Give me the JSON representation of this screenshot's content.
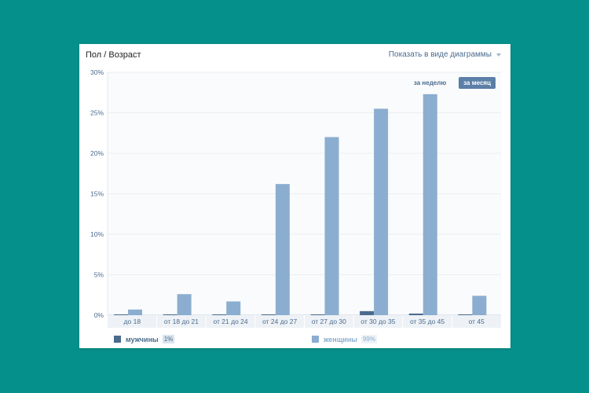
{
  "header": {
    "title": "Пол / Возраст",
    "view_toggle_label": "Показать в виде диаграммы"
  },
  "period": {
    "week_label": "за неделю",
    "month_label": "за месяц",
    "selected": "month"
  },
  "legend": {
    "men": {
      "name": "мужчины",
      "percent": "1%",
      "color": "#4a6b8e"
    },
    "women": {
      "name": "женщины",
      "percent": "99%",
      "color": "#8baed0"
    }
  },
  "chart_data": {
    "type": "bar",
    "categories": [
      "до 18",
      "от 18 до 21",
      "от 21 до 24",
      "от 24 до 27",
      "от 27 до 30",
      "от 30 до 35",
      "от 35 до 45",
      "от 45"
    ],
    "series": [
      {
        "name": "мужчины",
        "values": [
          0.1,
          0.1,
          0.1,
          0.1,
          0.1,
          0.5,
          0.2,
          0.1
        ]
      },
      {
        "name": "женщины",
        "values": [
          0.7,
          2.6,
          1.7,
          16.2,
          22.0,
          25.5,
          27.3,
          2.4
        ]
      }
    ],
    "yticks": [
      "0%",
      "5%",
      "10%",
      "15%",
      "20%",
      "25%",
      "30%"
    ],
    "ylim": [
      0,
      30
    ],
    "grid": true,
    "legend_position": "bottom"
  }
}
